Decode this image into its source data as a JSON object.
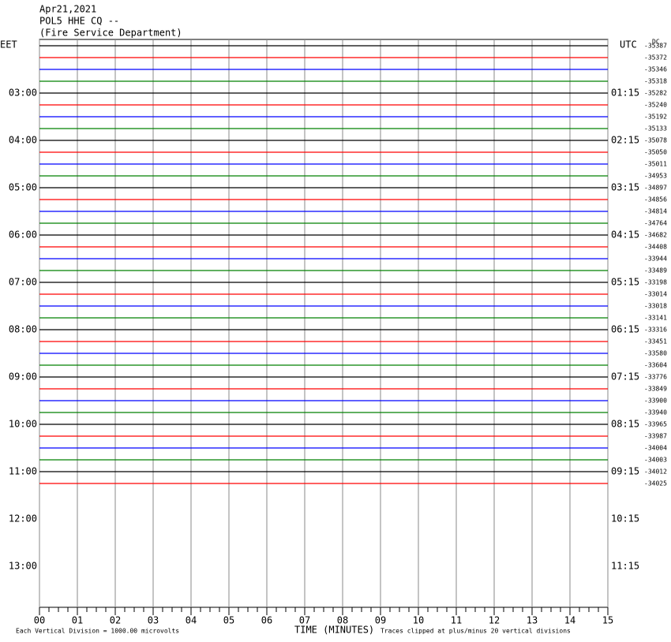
{
  "chart_data": {
    "type": "helicorder",
    "title_lines": [
      "Apr21,2021",
      "POL5 HHE CQ --",
      "(Fire Service Department)"
    ],
    "left_axis_label": "EET",
    "right_axis_label": "UTC",
    "dc_label": "DC",
    "left_times": [
      "03:00",
      "04:00",
      "05:00",
      "06:00",
      "07:00",
      "08:00",
      "09:00",
      "10:00",
      "11:00",
      "12:00",
      "13:00"
    ],
    "right_times": [
      "01:15",
      "02:15",
      "03:15",
      "04:15",
      "05:15",
      "06:15",
      "07:15",
      "08:15",
      "09:15",
      "10:15",
      "11:15"
    ],
    "dc_values": [
      "-35387",
      "-35372",
      "-35346",
      "-35318",
      "-35282",
      "-35240",
      "-35192",
      "-35133",
      "-35078",
      "-35050",
      "-35011",
      "-34953",
      "-34897",
      "-34856",
      "-34814",
      "-34764",
      "-34682",
      "-34408",
      "-33944",
      "-33489",
      "-33198",
      "-33014",
      "-33018",
      "-33141",
      "-33316",
      "-33451",
      "-33580",
      "-33604",
      "-33776",
      "-33849",
      "-33900",
      "-33940",
      "-33965",
      "-33987",
      "-34004",
      "-34003",
      "-34012",
      "-34025"
    ],
    "trace_colors": [
      "#000000",
      "#ff0000",
      "#0000ff",
      "#008000"
    ],
    "xlim": [
      0,
      15
    ],
    "xticks": [
      {
        "value": 0,
        "label": "00"
      },
      {
        "value": 1,
        "label": "01"
      },
      {
        "value": 2,
        "label": "02"
      },
      {
        "value": 3,
        "label": "03"
      },
      {
        "value": 4,
        "label": "04"
      },
      {
        "value": 5,
        "label": "05"
      },
      {
        "value": 6,
        "label": "06"
      },
      {
        "value": 7,
        "label": "07"
      },
      {
        "value": 8,
        "label": "08"
      },
      {
        "value": 9,
        "label": "09"
      },
      10,
      11,
      12,
      13,
      14,
      15
    ],
    "xlabel": "TIME (MINUTES)",
    "footer_left": "Each Vertical Division = 1000.00 microvolts",
    "footer_right": "Traces clipped at plus/minus 20 vertical divisions"
  }
}
